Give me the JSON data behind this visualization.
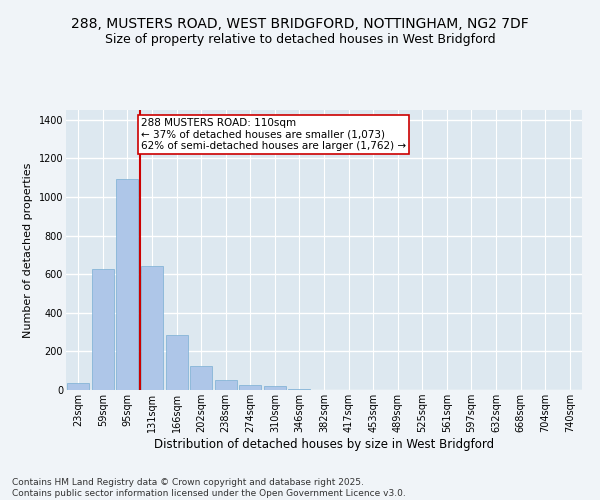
{
  "title_line1": "288, MUSTERS ROAD, WEST BRIDGFORD, NOTTINGHAM, NG2 7DF",
  "title_line2": "Size of property relative to detached houses in West Bridgford",
  "xlabel": "Distribution of detached houses by size in West Bridgford",
  "ylabel": "Number of detached properties",
  "categories": [
    "23sqm",
    "59sqm",
    "95sqm",
    "131sqm",
    "166sqm",
    "202sqm",
    "238sqm",
    "274sqm",
    "310sqm",
    "346sqm",
    "382sqm",
    "417sqm",
    "453sqm",
    "489sqm",
    "525sqm",
    "561sqm",
    "597sqm",
    "632sqm",
    "668sqm",
    "704sqm",
    "740sqm"
  ],
  "values": [
    35,
    625,
    1095,
    640,
    285,
    125,
    50,
    25,
    20,
    5,
    0,
    0,
    0,
    0,
    0,
    0,
    0,
    0,
    0,
    0,
    0
  ],
  "bar_color": "#aec6e8",
  "bar_edge_color": "#7aafd4",
  "vline_color": "#cc0000",
  "annotation_text": "288 MUSTERS ROAD: 110sqm\n← 37% of detached houses are smaller (1,073)\n62% of semi-detached houses are larger (1,762) →",
  "annotation_box_color": "#cc0000",
  "annotation_fontsize": 7.5,
  "ylim": [
    0,
    1450
  ],
  "yticks": [
    0,
    200,
    400,
    600,
    800,
    1000,
    1200,
    1400
  ],
  "background_color": "#dde8f0",
  "grid_color": "#ffffff",
  "fig_bg_color": "#f0f4f8",
  "footer_line1": "Contains HM Land Registry data © Crown copyright and database right 2025.",
  "footer_line2": "Contains public sector information licensed under the Open Government Licence v3.0.",
  "title_fontsize": 10,
  "subtitle_fontsize": 9,
  "xlabel_fontsize": 8.5,
  "ylabel_fontsize": 8,
  "tick_fontsize": 7,
  "footer_fontsize": 6.5
}
